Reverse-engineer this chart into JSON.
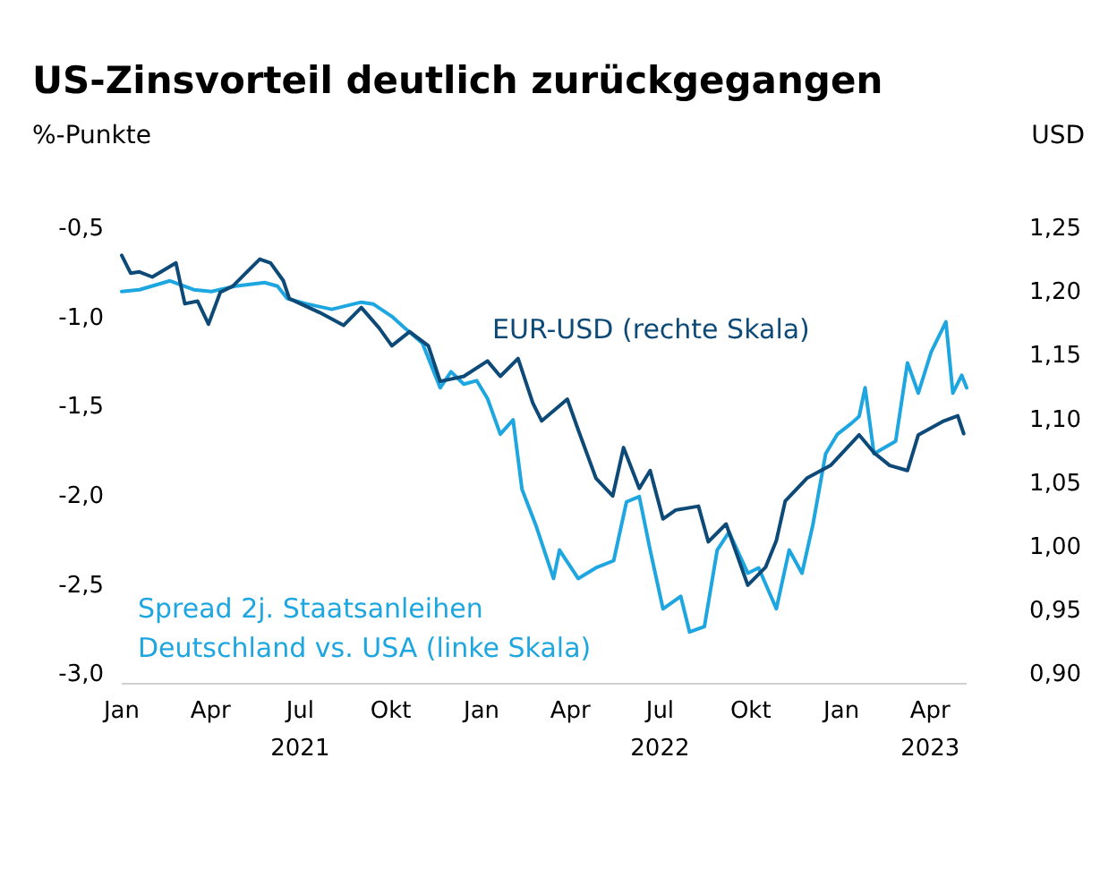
{
  "chart_data": {
    "type": "line",
    "title": "US-Zinsvorteil deutlich zurückgegangen",
    "ylabel": "%-Punkte",
    "y2label": "USD",
    "xlim": [
      "2021-01-01",
      "2023-05-08"
    ],
    "xticks": [
      {
        "value": "2021-01-01",
        "label": "Jan"
      },
      {
        "value": "2021-04-01",
        "label": "Apr"
      },
      {
        "value": "2021-07-01",
        "label": "Jul 2021"
      },
      {
        "value": "2021-10-01",
        "label": "Okt"
      },
      {
        "value": "2022-01-01",
        "label": "Jan"
      },
      {
        "value": "2022-04-01",
        "label": "Apr"
      },
      {
        "value": "2022-07-01",
        "label": "Jul 2022"
      },
      {
        "value": "2022-10-01",
        "label": "Okt"
      },
      {
        "value": "2023-01-01",
        "label": "Jan"
      },
      {
        "value": "2023-04-01",
        "label": "Apr 2023"
      }
    ],
    "ylim": [
      -3.0,
      -0.5
    ],
    "yticks": [
      {
        "value": -0.5,
        "label": "-0,5"
      },
      {
        "value": -1.0,
        "label": "-1,0"
      },
      {
        "value": -1.5,
        "label": "-1,5"
      },
      {
        "value": -2.0,
        "label": "-2,0"
      },
      {
        "value": -2.5,
        "label": "-2,5"
      },
      {
        "value": -3.0,
        "label": "-3,0"
      }
    ],
    "y2lim": [
      0.9,
      1.25
    ],
    "y2ticks": [
      {
        "value": 0.9,
        "label": "0,90"
      },
      {
        "value": 0.95,
        "label": "0,95"
      },
      {
        "value": 1.0,
        "label": "1,00"
      },
      {
        "value": 1.05,
        "label": "1,05"
      },
      {
        "value": 1.1,
        "label": "1,10"
      },
      {
        "value": 1.15,
        "label": "1,15"
      },
      {
        "value": 1.2,
        "label": "1,20"
      },
      {
        "value": 1.25,
        "label": "1,25"
      }
    ],
    "grid": false,
    "legend": false,
    "series": [
      {
        "name": "Spread 2j. Staatsanleihen Deutschland vs. USA (linke Skala)",
        "color": "#1ea6e0",
        "x": [
          "2021-01-01",
          "2021-01-19",
          "2021-02-19",
          "2021-03-15",
          "2021-04-02",
          "2021-04-26",
          "2021-05-26",
          "2021-06-08",
          "2021-06-18",
          "2021-07-08",
          "2021-08-02",
          "2021-09-01",
          "2021-09-13",
          "2021-10-02",
          "2021-10-14",
          "2021-11-02",
          "2021-11-20",
          "2021-12-01",
          "2021-12-14",
          "2021-12-27",
          "2022-01-07",
          "2022-01-20",
          "2022-02-02",
          "2022-02-11",
          "2022-02-25",
          "2022-03-15",
          "2022-03-21",
          "2022-04-09",
          "2022-04-27",
          "2022-05-15",
          "2022-05-28",
          "2022-06-10",
          "2022-06-21",
          "2022-07-04",
          "2022-07-22",
          "2022-07-31",
          "2022-08-15",
          "2022-08-28",
          "2022-09-09",
          "2022-09-28",
          "2022-10-09",
          "2022-10-27",
          "2022-11-09",
          "2022-11-22",
          "2022-12-03",
          "2022-12-16",
          "2022-12-28",
          "2023-01-11",
          "2023-01-19",
          "2023-01-25",
          "2023-02-03",
          "2023-02-25",
          "2023-03-09",
          "2023-03-20",
          "2023-04-02",
          "2023-04-17",
          "2023-04-24",
          "2023-05-03",
          "2023-05-08"
        ],
        "values": [
          -0.86,
          -0.85,
          -0.8,
          -0.85,
          -0.86,
          -0.83,
          -0.81,
          -0.83,
          -0.9,
          -0.93,
          -0.96,
          -0.92,
          -0.93,
          -1.0,
          -1.06,
          -1.15,
          -1.4,
          -1.31,
          -1.38,
          -1.36,
          -1.46,
          -1.66,
          -1.58,
          -1.97,
          -2.17,
          -2.47,
          -2.31,
          -2.47,
          -2.41,
          -2.37,
          -2.04,
          -2.01,
          -2.31,
          -2.64,
          -2.57,
          -2.77,
          -2.74,
          -2.31,
          -2.21,
          -2.44,
          -2.41,
          -2.64,
          -2.31,
          -2.44,
          -2.17,
          -1.77,
          -1.66,
          -1.6,
          -1.56,
          -1.4,
          -1.77,
          -1.7,
          -1.26,
          -1.43,
          -1.2,
          -1.03,
          -1.43,
          -1.33,
          -1.4
        ]
      },
      {
        "name": "EUR-USD (rechte Skala)",
        "color": "#0d4a78",
        "axis": "y2",
        "x": [
          "2021-01-01",
          "2021-01-10",
          "2021-01-19",
          "2021-02-01",
          "2021-02-25",
          "2021-03-06",
          "2021-03-19",
          "2021-03-30",
          "2021-04-11",
          "2021-04-24",
          "2021-05-08",
          "2021-05-21",
          "2021-06-01",
          "2021-06-14",
          "2021-06-20",
          "2021-07-21",
          "2021-08-14",
          "2021-09-01",
          "2021-09-19",
          "2021-10-02",
          "2021-10-20",
          "2021-11-08",
          "2021-11-20",
          "2021-12-14",
          "2022-01-07",
          "2022-01-20",
          "2022-02-07",
          "2022-02-22",
          "2022-03-03",
          "2022-03-29",
          "2022-04-09",
          "2022-04-27",
          "2022-05-14",
          "2022-05-25",
          "2022-06-10",
          "2022-06-21",
          "2022-07-04",
          "2022-07-17",
          "2022-08-09",
          "2022-08-19",
          "2022-09-06",
          "2022-09-28",
          "2022-10-16",
          "2022-10-27",
          "2022-11-05",
          "2022-11-27",
          "2022-12-21",
          "2023-01-19",
          "2023-02-03",
          "2023-02-19",
          "2023-03-09",
          "2023-03-20",
          "2023-04-15",
          "2023-04-29",
          "2023-05-05"
        ],
        "values": [
          1.228,
          1.214,
          1.215,
          1.211,
          1.222,
          1.19,
          1.192,
          1.174,
          1.199,
          1.204,
          1.215,
          1.225,
          1.222,
          1.208,
          1.194,
          1.183,
          1.173,
          1.187,
          1.171,
          1.157,
          1.168,
          1.157,
          1.129,
          1.133,
          1.145,
          1.133,
          1.147,
          1.112,
          1.098,
          1.115,
          1.091,
          1.053,
          1.039,
          1.077,
          1.045,
          1.059,
          1.021,
          1.028,
          1.031,
          1.003,
          1.017,
          0.969,
          0.983,
          1.004,
          1.035,
          1.053,
          1.063,
          1.087,
          1.073,
          1.063,
          1.059,
          1.087,
          1.098,
          1.102,
          1.088
        ]
      }
    ]
  }
}
